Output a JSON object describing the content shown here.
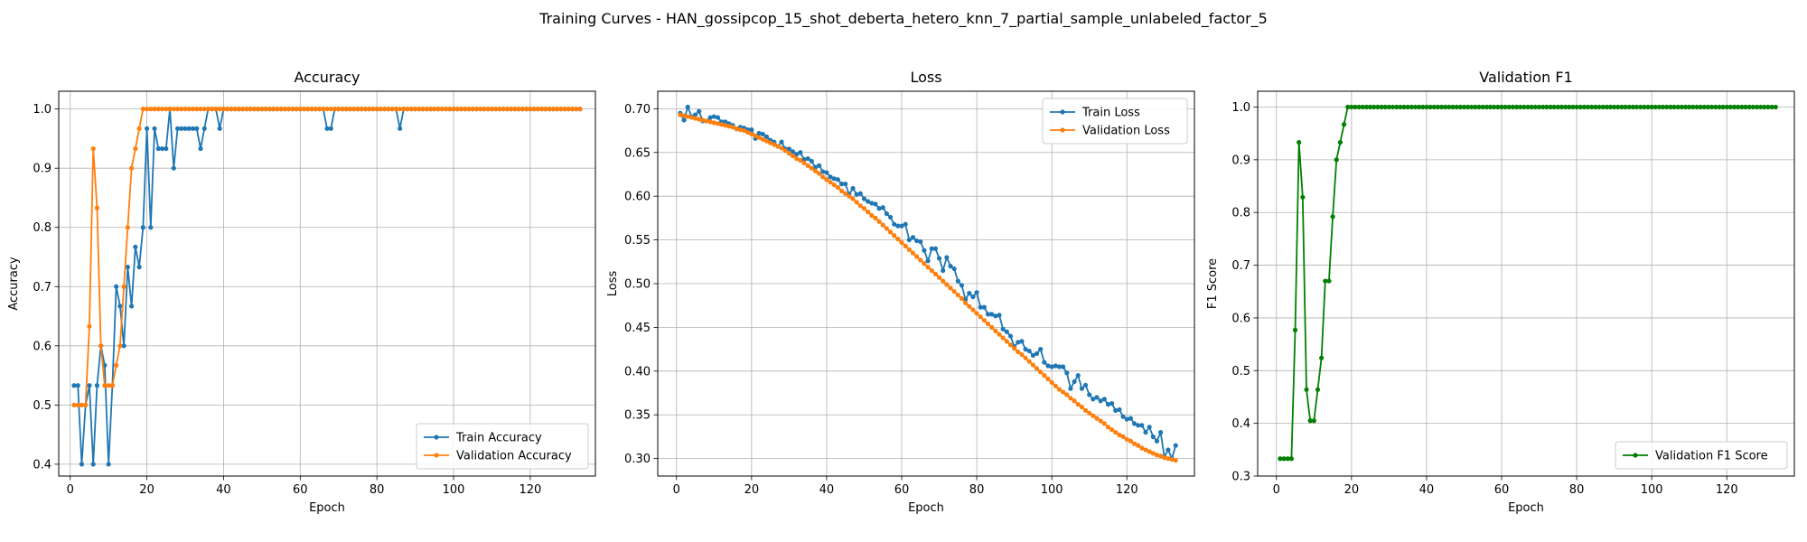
{
  "figure": {
    "title": "Training Curves - HAN_gossipcop_15_shot_deberta_hetero_knn_7_partial_sample_unlabeled_factor_5"
  },
  "colors": {
    "blue": "#1f77b4",
    "orange": "#ff7f0e",
    "green": "#008000",
    "grid": "#b0b0b0"
  },
  "chart_data": [
    {
      "type": "line",
      "title": "Accuracy",
      "xlabel": "Epoch",
      "ylabel": "Accuracy",
      "xlim": [
        -3,
        137
      ],
      "ylim": [
        0.38,
        1.03
      ],
      "xticks": [
        0,
        20,
        40,
        60,
        80,
        100,
        120
      ],
      "yticks": [
        0.4,
        0.5,
        0.6,
        0.7,
        0.8,
        0.9,
        1.0
      ],
      "ytick_decimals": 1,
      "grid": true,
      "legend_position": "lower-right",
      "series": [
        {
          "name": "Train Accuracy",
          "color": "#1f77b4",
          "x_start": 1,
          "values": [
            0.533,
            0.533,
            0.4,
            0.5,
            0.533,
            0.4,
            0.533,
            0.6,
            0.567,
            0.4,
            0.533,
            0.7,
            0.667,
            0.6,
            0.733,
            0.667,
            0.767,
            0.733,
            0.8,
            0.967,
            0.8,
            0.967,
            0.933,
            0.933,
            0.933,
            1.0,
            0.9,
            0.967,
            0.967,
            0.967,
            0.967,
            0.967,
            0.967,
            0.933,
            0.967,
            1.0,
            1.0,
            1.0,
            0.967,
            1.0,
            1.0,
            1.0,
            1.0,
            1.0,
            1.0,
            1.0,
            1.0,
            1.0,
            1.0,
            1.0,
            1.0,
            1.0,
            1.0,
            1.0,
            1.0,
            1.0,
            1.0,
            1.0,
            1.0,
            1.0,
            1.0,
            1.0,
            1.0,
            1.0,
            1.0,
            1.0,
            0.967,
            0.967,
            1.0,
            1.0,
            1.0,
            1.0,
            1.0,
            1.0,
            1.0,
            1.0,
            1.0,
            1.0,
            1.0,
            1.0,
            1.0,
            1.0,
            1.0,
            1.0,
            1.0,
            0.967,
            1.0,
            1.0,
            1.0,
            1.0,
            1.0,
            1.0,
            1.0,
            1.0,
            1.0,
            1.0,
            1.0,
            1.0,
            1.0,
            1.0,
            1.0,
            1.0,
            1.0,
            1.0,
            1.0,
            1.0,
            1.0,
            1.0,
            1.0,
            1.0,
            1.0,
            1.0,
            1.0,
            1.0,
            1.0,
            1.0,
            1.0,
            1.0,
            1.0,
            1.0,
            1.0,
            1.0,
            1.0,
            1.0,
            1.0,
            1.0,
            1.0,
            1.0,
            1.0,
            1.0,
            1.0,
            1.0,
            1.0
          ]
        },
        {
          "name": "Validation Accuracy",
          "color": "#ff7f0e",
          "x_start": 1,
          "values": [
            0.5,
            0.5,
            0.5,
            0.5,
            0.633,
            0.933,
            0.833,
            0.6,
            0.533,
            0.533,
            0.533,
            0.567,
            0.6,
            0.7,
            0.8,
            0.9,
            0.933,
            0.967,
            1.0,
            1.0,
            1.0,
            1.0,
            1.0,
            1.0,
            1.0,
            1.0,
            1.0,
            1.0,
            1.0,
            1.0,
            1.0,
            1.0,
            1.0,
            1.0,
            1.0,
            1.0,
            1.0,
            1.0,
            1.0,
            1.0,
            1.0,
            1.0,
            1.0,
            1.0,
            1.0,
            1.0,
            1.0,
            1.0,
            1.0,
            1.0,
            1.0,
            1.0,
            1.0,
            1.0,
            1.0,
            1.0,
            1.0,
            1.0,
            1.0,
            1.0,
            1.0,
            1.0,
            1.0,
            1.0,
            1.0,
            1.0,
            1.0,
            1.0,
            1.0,
            1.0,
            1.0,
            1.0,
            1.0,
            1.0,
            1.0,
            1.0,
            1.0,
            1.0,
            1.0,
            1.0,
            1.0,
            1.0,
            1.0,
            1.0,
            1.0,
            1.0,
            1.0,
            1.0,
            1.0,
            1.0,
            1.0,
            1.0,
            1.0,
            1.0,
            1.0,
            1.0,
            1.0,
            1.0,
            1.0,
            1.0,
            1.0,
            1.0,
            1.0,
            1.0,
            1.0,
            1.0,
            1.0,
            1.0,
            1.0,
            1.0,
            1.0,
            1.0,
            1.0,
            1.0,
            1.0,
            1.0,
            1.0,
            1.0,
            1.0,
            1.0,
            1.0,
            1.0,
            1.0,
            1.0,
            1.0,
            1.0,
            1.0,
            1.0,
            1.0,
            1.0,
            1.0,
            1.0,
            1.0
          ]
        }
      ]
    },
    {
      "type": "line",
      "title": "Loss",
      "xlabel": "Epoch",
      "ylabel": "Loss",
      "xlim": [
        -5,
        138
      ],
      "ylim": [
        0.28,
        0.72
      ],
      "xticks": [
        0,
        20,
        40,
        60,
        80,
        100,
        120
      ],
      "yticks": [
        0.3,
        0.35,
        0.4,
        0.45,
        0.5,
        0.55,
        0.6,
        0.65,
        0.7
      ],
      "ytick_decimals": 2,
      "grid": true,
      "legend_position": "top-right",
      "series": [
        {
          "name": "Train Loss",
          "color": "#1f77b4",
          "x_start": 1,
          "values": [
            0.695,
            0.687,
            0.702,
            0.691,
            0.693,
            0.697,
            0.686,
            0.686,
            0.69,
            0.691,
            0.69,
            0.685,
            0.685,
            0.683,
            0.681,
            0.677,
            0.679,
            0.678,
            0.676,
            0.676,
            0.666,
            0.672,
            0.671,
            0.668,
            0.664,
            0.662,
            0.657,
            0.662,
            0.654,
            0.654,
            0.651,
            0.648,
            0.65,
            0.642,
            0.643,
            0.64,
            0.633,
            0.635,
            0.628,
            0.627,
            0.622,
            0.62,
            0.619,
            0.614,
            0.614,
            0.602,
            0.609,
            0.602,
            0.603,
            0.597,
            0.594,
            0.592,
            0.591,
            0.586,
            0.587,
            0.58,
            0.576,
            0.568,
            0.566,
            0.566,
            0.568,
            0.55,
            0.553,
            0.549,
            0.548,
            0.538,
            0.526,
            0.54,
            0.54,
            0.529,
            0.515,
            0.53,
            0.52,
            0.517,
            0.503,
            0.498,
            0.482,
            0.489,
            0.485,
            0.49,
            0.473,
            0.473,
            0.465,
            0.465,
            0.463,
            0.464,
            0.448,
            0.445,
            0.44,
            0.428,
            0.433,
            0.434,
            0.425,
            0.423,
            0.418,
            0.42,
            0.425,
            0.41,
            0.406,
            0.405,
            0.406,
            0.405,
            0.405,
            0.398,
            0.38,
            0.388,
            0.395,
            0.38,
            0.384,
            0.373,
            0.368,
            0.37,
            0.366,
            0.368,
            0.362,
            0.363,
            0.355,
            0.356,
            0.348,
            0.345,
            0.346,
            0.34,
            0.338,
            0.338,
            0.33,
            0.336,
            0.325,
            0.32,
            0.33,
            0.302,
            0.31,
            0.3,
            0.315
          ]
        },
        {
          "name": "Validation Loss",
          "color": "#ff7f0e",
          "x_start": 1,
          "values": [
            0.693,
            0.692,
            0.691,
            0.69,
            0.689,
            0.688,
            0.687,
            0.686,
            0.685,
            0.684,
            0.683,
            0.682,
            0.681,
            0.68,
            0.679,
            0.677,
            0.676,
            0.675,
            0.673,
            0.671,
            0.669,
            0.667,
            0.665,
            0.663,
            0.661,
            0.659,
            0.657,
            0.655,
            0.652,
            0.649,
            0.646,
            0.643,
            0.641,
            0.638,
            0.635,
            0.632,
            0.629,
            0.626,
            0.622,
            0.619,
            0.616,
            0.613,
            0.61,
            0.606,
            0.603,
            0.6,
            0.597,
            0.593,
            0.589,
            0.586,
            0.582,
            0.578,
            0.575,
            0.571,
            0.567,
            0.563,
            0.559,
            0.555,
            0.551,
            0.547,
            0.543,
            0.539,
            0.535,
            0.531,
            0.527,
            0.523,
            0.519,
            0.515,
            0.511,
            0.507,
            0.503,
            0.499,
            0.495,
            0.491,
            0.487,
            0.483,
            0.478,
            0.474,
            0.47,
            0.466,
            0.462,
            0.458,
            0.454,
            0.45,
            0.446,
            0.442,
            0.438,
            0.434,
            0.43,
            0.426,
            0.422,
            0.419,
            0.415,
            0.411,
            0.407,
            0.403,
            0.399,
            0.395,
            0.391,
            0.387,
            0.383,
            0.379,
            0.376,
            0.373,
            0.369,
            0.366,
            0.362,
            0.359,
            0.355,
            0.352,
            0.349,
            0.346,
            0.343,
            0.34,
            0.336,
            0.333,
            0.33,
            0.327,
            0.325,
            0.322,
            0.32,
            0.317,
            0.315,
            0.312,
            0.31,
            0.308,
            0.306,
            0.304,
            0.303,
            0.301,
            0.3,
            0.299,
            0.298
          ]
        }
      ]
    },
    {
      "type": "line",
      "title": "Validation F1",
      "xlabel": "Epoch",
      "ylabel": "F1 Score",
      "xlim": [
        -5,
        138
      ],
      "ylim": [
        0.3,
        1.03
      ],
      "xticks": [
        0,
        20,
        40,
        60,
        80,
        100,
        120
      ],
      "yticks": [
        0.3,
        0.4,
        0.5,
        0.6,
        0.7,
        0.8,
        0.9,
        1.0
      ],
      "ytick_decimals": 1,
      "grid": true,
      "legend_position": "lower-right",
      "series": [
        {
          "name": "Validation F1 Score",
          "color": "#008000",
          "x_start": 1,
          "values": [
            0.333,
            0.333,
            0.333,
            0.333,
            0.577,
            0.933,
            0.829,
            0.464,
            0.405,
            0.405,
            0.464,
            0.524,
            0.67,
            0.67,
            0.792,
            0.9,
            0.933,
            0.967,
            1.0,
            1.0,
            1.0,
            1.0,
            1.0,
            1.0,
            1.0,
            1.0,
            1.0,
            1.0,
            1.0,
            1.0,
            1.0,
            1.0,
            1.0,
            1.0,
            1.0,
            1.0,
            1.0,
            1.0,
            1.0,
            1.0,
            1.0,
            1.0,
            1.0,
            1.0,
            1.0,
            1.0,
            1.0,
            1.0,
            1.0,
            1.0,
            1.0,
            1.0,
            1.0,
            1.0,
            1.0,
            1.0,
            1.0,
            1.0,
            1.0,
            1.0,
            1.0,
            1.0,
            1.0,
            1.0,
            1.0,
            1.0,
            1.0,
            1.0,
            1.0,
            1.0,
            1.0,
            1.0,
            1.0,
            1.0,
            1.0,
            1.0,
            1.0,
            1.0,
            1.0,
            1.0,
            1.0,
            1.0,
            1.0,
            1.0,
            1.0,
            1.0,
            1.0,
            1.0,
            1.0,
            1.0,
            1.0,
            1.0,
            1.0,
            1.0,
            1.0,
            1.0,
            1.0,
            1.0,
            1.0,
            1.0,
            1.0,
            1.0,
            1.0,
            1.0,
            1.0,
            1.0,
            1.0,
            1.0,
            1.0,
            1.0,
            1.0,
            1.0,
            1.0,
            1.0,
            1.0,
            1.0,
            1.0,
            1.0,
            1.0,
            1.0,
            1.0,
            1.0,
            1.0,
            1.0,
            1.0,
            1.0,
            1.0,
            1.0,
            1.0,
            1.0,
            1.0,
            1.0,
            1.0
          ]
        }
      ]
    }
  ]
}
